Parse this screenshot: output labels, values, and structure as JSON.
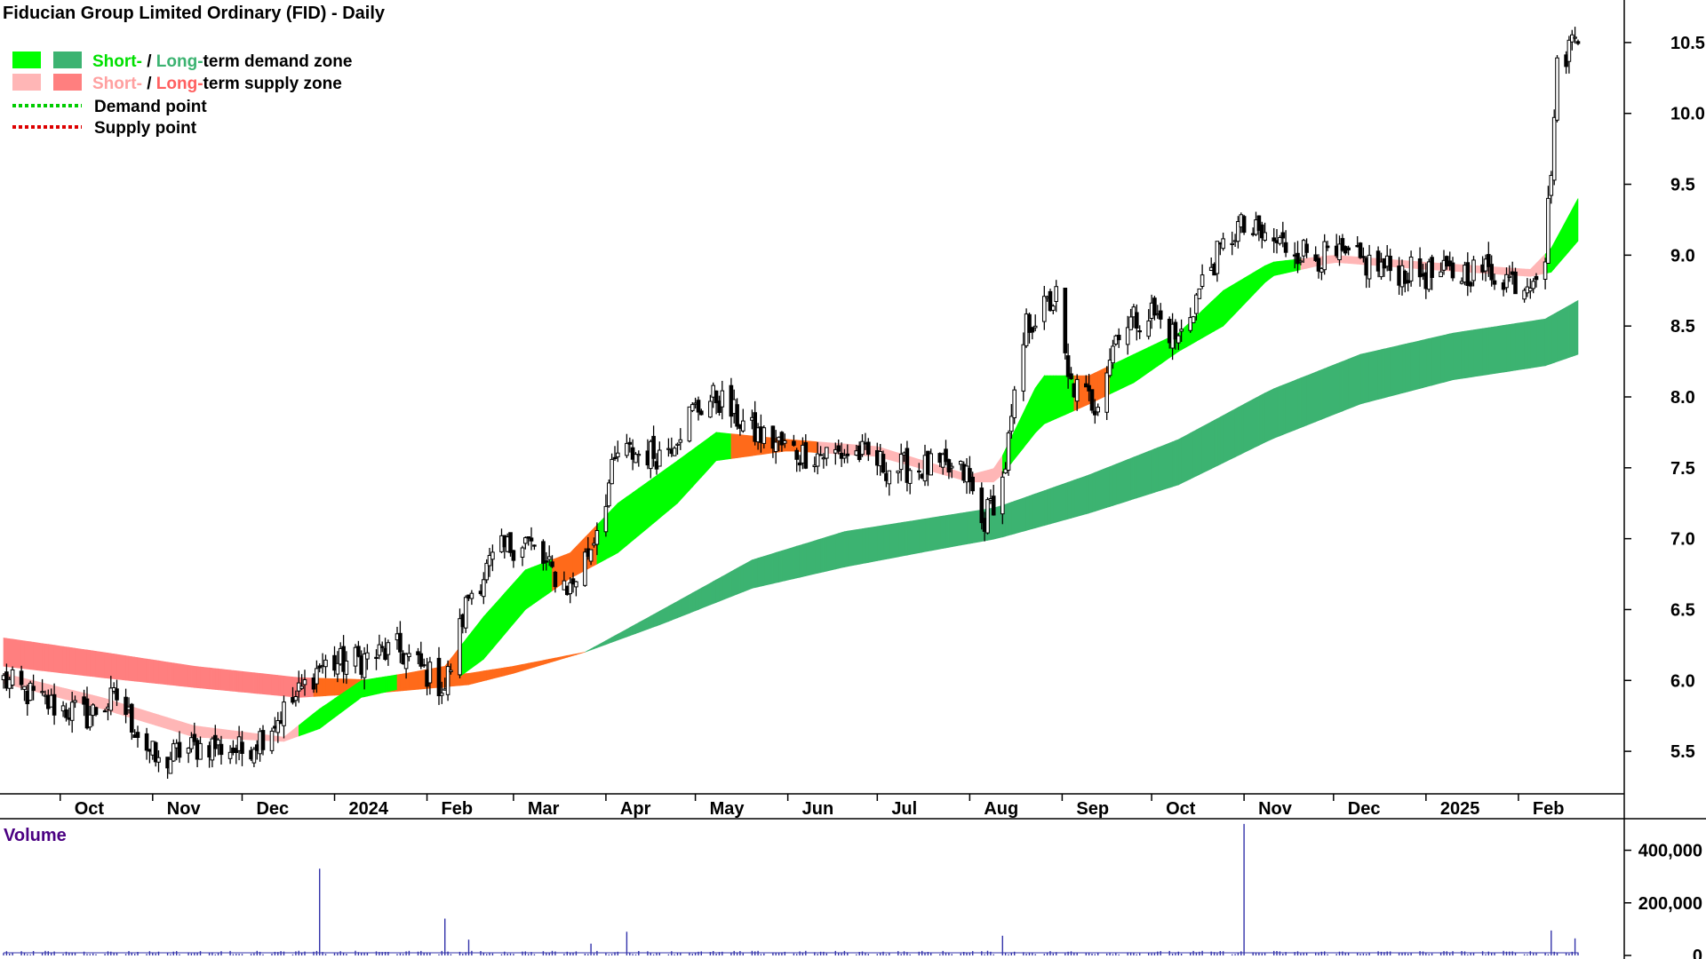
{
  "title": "Fiducian Group Limited Ordinary (FID) - Daily",
  "legend": {
    "demand_zone": {
      "short": "Short-",
      "sep": " / ",
      "long": "Long-",
      "rest": "term demand zone"
    },
    "supply_zone": {
      "short": "Short-",
      "sep": " / ",
      "long": "Long-",
      "rest": "term supply zone"
    },
    "demand_point": "Demand point",
    "supply_point": "Supply point"
  },
  "colors": {
    "short_demand": "#00ff00",
    "long_demand": "#3cb371",
    "short_supply": "#ffb6b6",
    "long_supply": "#ff7f7f",
    "transition": "#ff6a1a",
    "demand_point": "#00cc00",
    "supply_point": "#dd0000",
    "volume": "#3333aa",
    "volume_label": "#4b0082"
  },
  "volume_panel": {
    "label": "Volume"
  },
  "chart_data": {
    "type": "candlestick",
    "title": "Fiducian Group Limited Ordinary (FID) - Daily",
    "x_axis": {
      "type": "date",
      "range": [
        "2023-09-12",
        "2025-02-21"
      ],
      "tick_labels": [
        {
          "date": "2023-10-01",
          "label": "Oct"
        },
        {
          "date": "2023-11-01",
          "label": "Nov"
        },
        {
          "date": "2023-12-01",
          "label": "Dec"
        },
        {
          "date": "2024-01-01",
          "label": "2024"
        },
        {
          "date": "2024-02-01",
          "label": "Feb"
        },
        {
          "date": "2024-03-01",
          "label": "Mar"
        },
        {
          "date": "2024-04-01",
          "label": "Apr"
        },
        {
          "date": "2024-05-01",
          "label": "May"
        },
        {
          "date": "2024-06-01",
          "label": "Jun"
        },
        {
          "date": "2024-07-01",
          "label": "Jul"
        },
        {
          "date": "2024-08-01",
          "label": "Aug"
        },
        {
          "date": "2024-09-01",
          "label": "Sep"
        },
        {
          "date": "2024-10-01",
          "label": "Oct"
        },
        {
          "date": "2024-11-01",
          "label": "Nov"
        },
        {
          "date": "2024-12-01",
          "label": "Dec"
        },
        {
          "date": "2025-01-01",
          "label": "2025"
        },
        {
          "date": "2025-02-01",
          "label": "Feb"
        }
      ]
    },
    "y_axis": {
      "range": [
        5.2,
        10.8
      ],
      "ticks": [
        5.5,
        6.0,
        6.5,
        7.0,
        7.5,
        8.0,
        8.5,
        9.0,
        9.5,
        10.0,
        10.5
      ]
    },
    "volume_axis": {
      "range": [
        0,
        520000
      ],
      "ticks": [
        {
          "v": 0,
          "label": "0"
        },
        {
          "v": 200000,
          "label": "200,000"
        },
        {
          "v": 400000,
          "label": "400,000"
        }
      ]
    },
    "price_path": [
      [
        "2023-09-12",
        6.0
      ],
      [
        "2023-09-25",
        5.85
      ],
      [
        "2023-10-10",
        5.75
      ],
      [
        "2023-10-20",
        5.88
      ],
      [
        "2023-10-31",
        5.5
      ],
      [
        "2023-11-03",
        5.4
      ],
      [
        "2023-11-10",
        5.5
      ],
      [
        "2023-11-20",
        5.55
      ],
      [
        "2023-12-01",
        5.5
      ],
      [
        "2023-12-08",
        5.62
      ],
      [
        "2023-12-18",
        5.85
      ],
      [
        "2023-12-27",
        6.1
      ],
      [
        "2024-01-10",
        6.15
      ],
      [
        "2024-01-22",
        6.22
      ],
      [
        "2024-02-01",
        6.05
      ],
      [
        "2024-02-07",
        5.95
      ],
      [
        "2024-02-15",
        6.6
      ],
      [
        "2024-02-25",
        6.9
      ],
      [
        "2024-03-05",
        7.0
      ],
      [
        "2024-03-12",
        6.8
      ],
      [
        "2024-03-20",
        6.65
      ],
      [
        "2024-03-27",
        6.95
      ],
      [
        "2024-04-05",
        7.6
      ],
      [
        "2024-04-20",
        7.6
      ],
      [
        "2024-04-30",
        7.9
      ],
      [
        "2024-05-08",
        8.0
      ],
      [
        "2024-05-20",
        7.75
      ],
      [
        "2024-06-05",
        7.6
      ],
      [
        "2024-06-25",
        7.6
      ],
      [
        "2024-07-05",
        7.5
      ],
      [
        "2024-07-20",
        7.5
      ],
      [
        "2024-07-31",
        7.45
      ],
      [
        "2024-08-05",
        7.1
      ],
      [
        "2024-08-12",
        7.4
      ],
      [
        "2024-08-20",
        8.5
      ],
      [
        "2024-08-30",
        8.7
      ],
      [
        "2024-09-03",
        8.1
      ],
      [
        "2024-09-12",
        7.95
      ],
      [
        "2024-09-20",
        8.5
      ],
      [
        "2024-10-01",
        8.6
      ],
      [
        "2024-10-10",
        8.4
      ],
      [
        "2024-10-20",
        8.9
      ],
      [
        "2024-10-30",
        9.2
      ],
      [
        "2024-11-10",
        9.1
      ],
      [
        "2024-11-25",
        9.0
      ],
      [
        "2024-12-10",
        8.95
      ],
      [
        "2024-12-20",
        8.9
      ],
      [
        "2025-01-05",
        8.85
      ],
      [
        "2025-01-20",
        8.9
      ],
      [
        "2025-02-03",
        8.8
      ],
      [
        "2025-02-10",
        9.0
      ],
      [
        "2025-02-14",
        10.3
      ],
      [
        "2025-02-21",
        10.6
      ]
    ],
    "short_term_zone": [
      [
        "2023-09-12",
        6.05,
        5.98
      ],
      [
        "2023-10-15",
        5.88,
        5.8
      ],
      [
        "2023-11-15",
        5.68,
        5.6
      ],
      [
        "2023-12-15",
        5.6,
        5.57
      ],
      [
        "2023-12-27",
        5.8,
        5.66
      ],
      [
        "2024-01-10",
        6.0,
        5.88
      ],
      [
        "2024-01-25",
        6.05,
        5.95
      ],
      [
        "2024-02-07",
        6.1,
        5.95
      ],
      [
        "2024-02-20",
        6.45,
        6.15
      ],
      [
        "2024-03-05",
        6.78,
        6.5
      ],
      [
        "2024-03-20",
        6.9,
        6.72
      ],
      [
        "2024-04-05",
        7.25,
        6.9
      ],
      [
        "2024-04-25",
        7.55,
        7.25
      ],
      [
        "2024-05-08",
        7.75,
        7.55
      ],
      [
        "2024-06-01",
        7.7,
        7.62
      ],
      [
        "2024-07-01",
        7.65,
        7.58
      ],
      [
        "2024-08-01",
        7.45,
        7.4
      ],
      [
        "2024-08-10",
        7.5,
        7.4
      ],
      [
        "2024-08-25",
        8.15,
        7.8
      ],
      [
        "2024-09-10",
        8.15,
        7.95
      ],
      [
        "2024-09-25",
        8.3,
        8.1
      ],
      [
        "2024-10-10",
        8.45,
        8.32
      ],
      [
        "2024-10-25",
        8.75,
        8.5
      ],
      [
        "2024-11-10",
        8.95,
        8.85
      ],
      [
        "2024-12-01",
        9.0,
        8.95
      ],
      [
        "2025-01-01",
        8.95,
        8.9
      ],
      [
        "2025-02-05",
        8.9,
        8.85
      ],
      [
        "2025-02-12",
        9.05,
        8.88
      ],
      [
        "2025-02-21",
        9.4,
        9.1
      ]
    ],
    "long_term_zone": [
      [
        "2023-09-12",
        6.3,
        6.1
      ],
      [
        "2023-10-15",
        6.2,
        6.02
      ],
      [
        "2023-11-15",
        6.1,
        5.95
      ],
      [
        "2023-12-20",
        6.02,
        5.88
      ],
      [
        "2024-01-20",
        6.0,
        5.92
      ],
      [
        "2024-02-15",
        6.05,
        5.97
      ],
      [
        "2024-03-01",
        6.1,
        6.05
      ],
      [
        "2024-03-25",
        6.2,
        6.2
      ],
      [
        "2024-04-20",
        6.5,
        6.4
      ],
      [
        "2024-05-20",
        6.85,
        6.65
      ],
      [
        "2024-06-20",
        7.05,
        6.8
      ],
      [
        "2024-07-20",
        7.15,
        6.92
      ],
      [
        "2024-08-10",
        7.22,
        7.0
      ],
      [
        "2024-09-10",
        7.45,
        7.18
      ],
      [
        "2024-10-10",
        7.7,
        7.38
      ],
      [
        "2024-11-10",
        8.05,
        7.7
      ],
      [
        "2024-12-10",
        8.3,
        7.95
      ],
      [
        "2025-01-10",
        8.45,
        8.12
      ],
      [
        "2025-02-10",
        8.55,
        8.22
      ],
      [
        "2025-02-21",
        8.68,
        8.3
      ]
    ],
    "volume_spikes": [
      [
        "2023-09-23",
        80000
      ],
      [
        "2023-12-27",
        330000
      ],
      [
        "2024-02-07",
        140000
      ],
      [
        "2024-02-15",
        60000
      ],
      [
        "2024-03-27",
        45000
      ],
      [
        "2024-04-08",
        90000
      ],
      [
        "2024-06-15",
        50000
      ],
      [
        "2024-08-12",
        75000
      ],
      [
        "2024-11-01",
        500000
      ],
      [
        "2025-02-12",
        95000
      ],
      [
        "2025-02-20",
        65000
      ]
    ]
  }
}
